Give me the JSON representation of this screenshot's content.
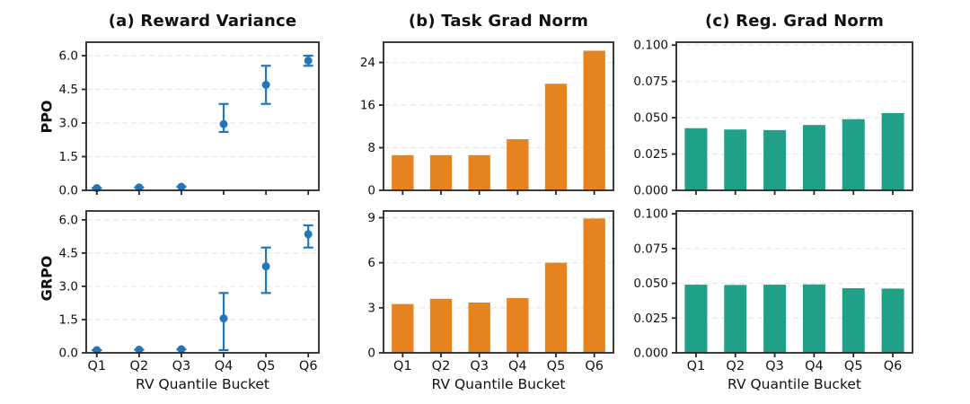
{
  "figure": {
    "background": "#ffffff",
    "row_labels": [
      "PPO",
      "GRPO"
    ],
    "col_titles": [
      "(a) Reward Variance",
      "(b) Task Grad Norm",
      "(c) Reg. Grad Norm"
    ],
    "x_axis_label": "RV Quantile Bucket",
    "categories": [
      "Q1",
      "Q2",
      "Q3",
      "Q4",
      "Q5",
      "Q6"
    ]
  },
  "colors": {
    "scatter_blue": "#2277b8",
    "bar_orange": "#e58320",
    "bar_teal": "#20a087",
    "grid": "#e7e7e7",
    "spine": "#262626",
    "text": "#111111"
  },
  "chart_data": [
    {
      "id": "ppo-reward-variance",
      "type": "scatter",
      "title": "(a) Reward Variance",
      "ylabel": "PPO",
      "xlabel": "",
      "categories": [
        "Q1",
        "Q2",
        "Q3",
        "Q4",
        "Q5",
        "Q6"
      ],
      "values": [
        0.1,
        0.13,
        0.16,
        2.95,
        4.7,
        5.78
      ],
      "err_low": [
        0.1,
        0.13,
        0.16,
        2.6,
        3.85,
        5.55
      ],
      "err_high": [
        0.1,
        0.13,
        0.16,
        3.85,
        5.55,
        6.0
      ],
      "yticks": [
        0.0,
        1.5,
        3.0,
        4.5,
        6.0
      ],
      "ytick_labels": [
        "0.0",
        "1.5",
        "3.0",
        "4.5",
        "6.0"
      ],
      "ylim": [
        0,
        6.6
      ],
      "grid": true,
      "show_x_labels": false,
      "color": "#2277b8"
    },
    {
      "id": "ppo-task-grad-norm",
      "type": "bar",
      "title": "(b) Task Grad Norm",
      "ylabel": "PPO",
      "xlabel": "",
      "categories": [
        "Q1",
        "Q2",
        "Q3",
        "Q4",
        "Q5",
        "Q6"
      ],
      "values": [
        6.6,
        6.6,
        6.6,
        9.6,
        20.0,
        26.2
      ],
      "yticks": [
        0,
        8,
        16,
        24
      ],
      "ytick_labels": [
        "0",
        "8",
        "16",
        "24"
      ],
      "ylim": [
        0,
        27.8
      ],
      "grid": true,
      "show_x_labels": false,
      "color": "#e58320"
    },
    {
      "id": "ppo-reg-grad-norm",
      "type": "bar",
      "title": "(c) Reg. Grad Norm",
      "ylabel": "PPO",
      "xlabel": "",
      "categories": [
        "Q1",
        "Q2",
        "Q3",
        "Q4",
        "Q5",
        "Q6"
      ],
      "values": [
        0.0428,
        0.0419,
        0.0415,
        0.045,
        0.049,
        0.0532
      ],
      "yticks": [
        0.0,
        0.025,
        0.05,
        0.075,
        0.1
      ],
      "ytick_labels": [
        "0.000",
        "0.025",
        "0.050",
        "0.075",
        "0.100"
      ],
      "ylim": [
        0,
        0.102
      ],
      "grid": true,
      "show_x_labels": false,
      "color": "#20a087"
    },
    {
      "id": "grpo-reward-variance",
      "type": "scatter",
      "title": "(a) Reward Variance",
      "ylabel": "GRPO",
      "xlabel": "RV Quantile Bucket",
      "categories": [
        "Q1",
        "Q2",
        "Q3",
        "Q4",
        "Q5",
        "Q6"
      ],
      "values": [
        0.12,
        0.14,
        0.16,
        1.55,
        3.9,
        5.35
      ],
      "err_low": [
        0.12,
        0.14,
        0.16,
        0.12,
        2.7,
        4.75
      ],
      "err_high": [
        0.12,
        0.14,
        0.16,
        2.7,
        4.75,
        5.75
      ],
      "yticks": [
        0.0,
        1.5,
        3.0,
        4.5,
        6.0
      ],
      "ytick_labels": [
        "0.0",
        "1.5",
        "3.0",
        "4.5",
        "6.0"
      ],
      "ylim": [
        0,
        6.4
      ],
      "grid": true,
      "show_x_labels": true,
      "color": "#2277b8"
    },
    {
      "id": "grpo-task-grad-norm",
      "type": "bar",
      "title": "(b) Task Grad Norm",
      "ylabel": "GRPO",
      "xlabel": "RV Quantile Bucket",
      "categories": [
        "Q1",
        "Q2",
        "Q3",
        "Q4",
        "Q5",
        "Q6"
      ],
      "values": [
        3.25,
        3.6,
        3.35,
        3.65,
        6.0,
        8.95
      ],
      "yticks": [
        0,
        3,
        6,
        9
      ],
      "ytick_labels": [
        "0",
        "3",
        "6",
        "9"
      ],
      "ylim": [
        0,
        9.45
      ],
      "grid": true,
      "show_x_labels": true,
      "color": "#e58320"
    },
    {
      "id": "grpo-reg-grad-norm",
      "type": "bar",
      "title": "(c) Reg. Grad Norm",
      "ylabel": "GRPO",
      "xlabel": "RV Quantile Bucket",
      "categories": [
        "Q1",
        "Q2",
        "Q3",
        "Q4",
        "Q5",
        "Q6"
      ],
      "values": [
        0.049,
        0.0488,
        0.049,
        0.0492,
        0.0465,
        0.0462
      ],
      "yticks": [
        0.0,
        0.025,
        0.05,
        0.075,
        0.1
      ],
      "ytick_labels": [
        "0.000",
        "0.025",
        "0.050",
        "0.075",
        "0.100"
      ],
      "ylim": [
        0,
        0.102
      ],
      "grid": true,
      "show_x_labels": true,
      "color": "#20a087"
    }
  ]
}
